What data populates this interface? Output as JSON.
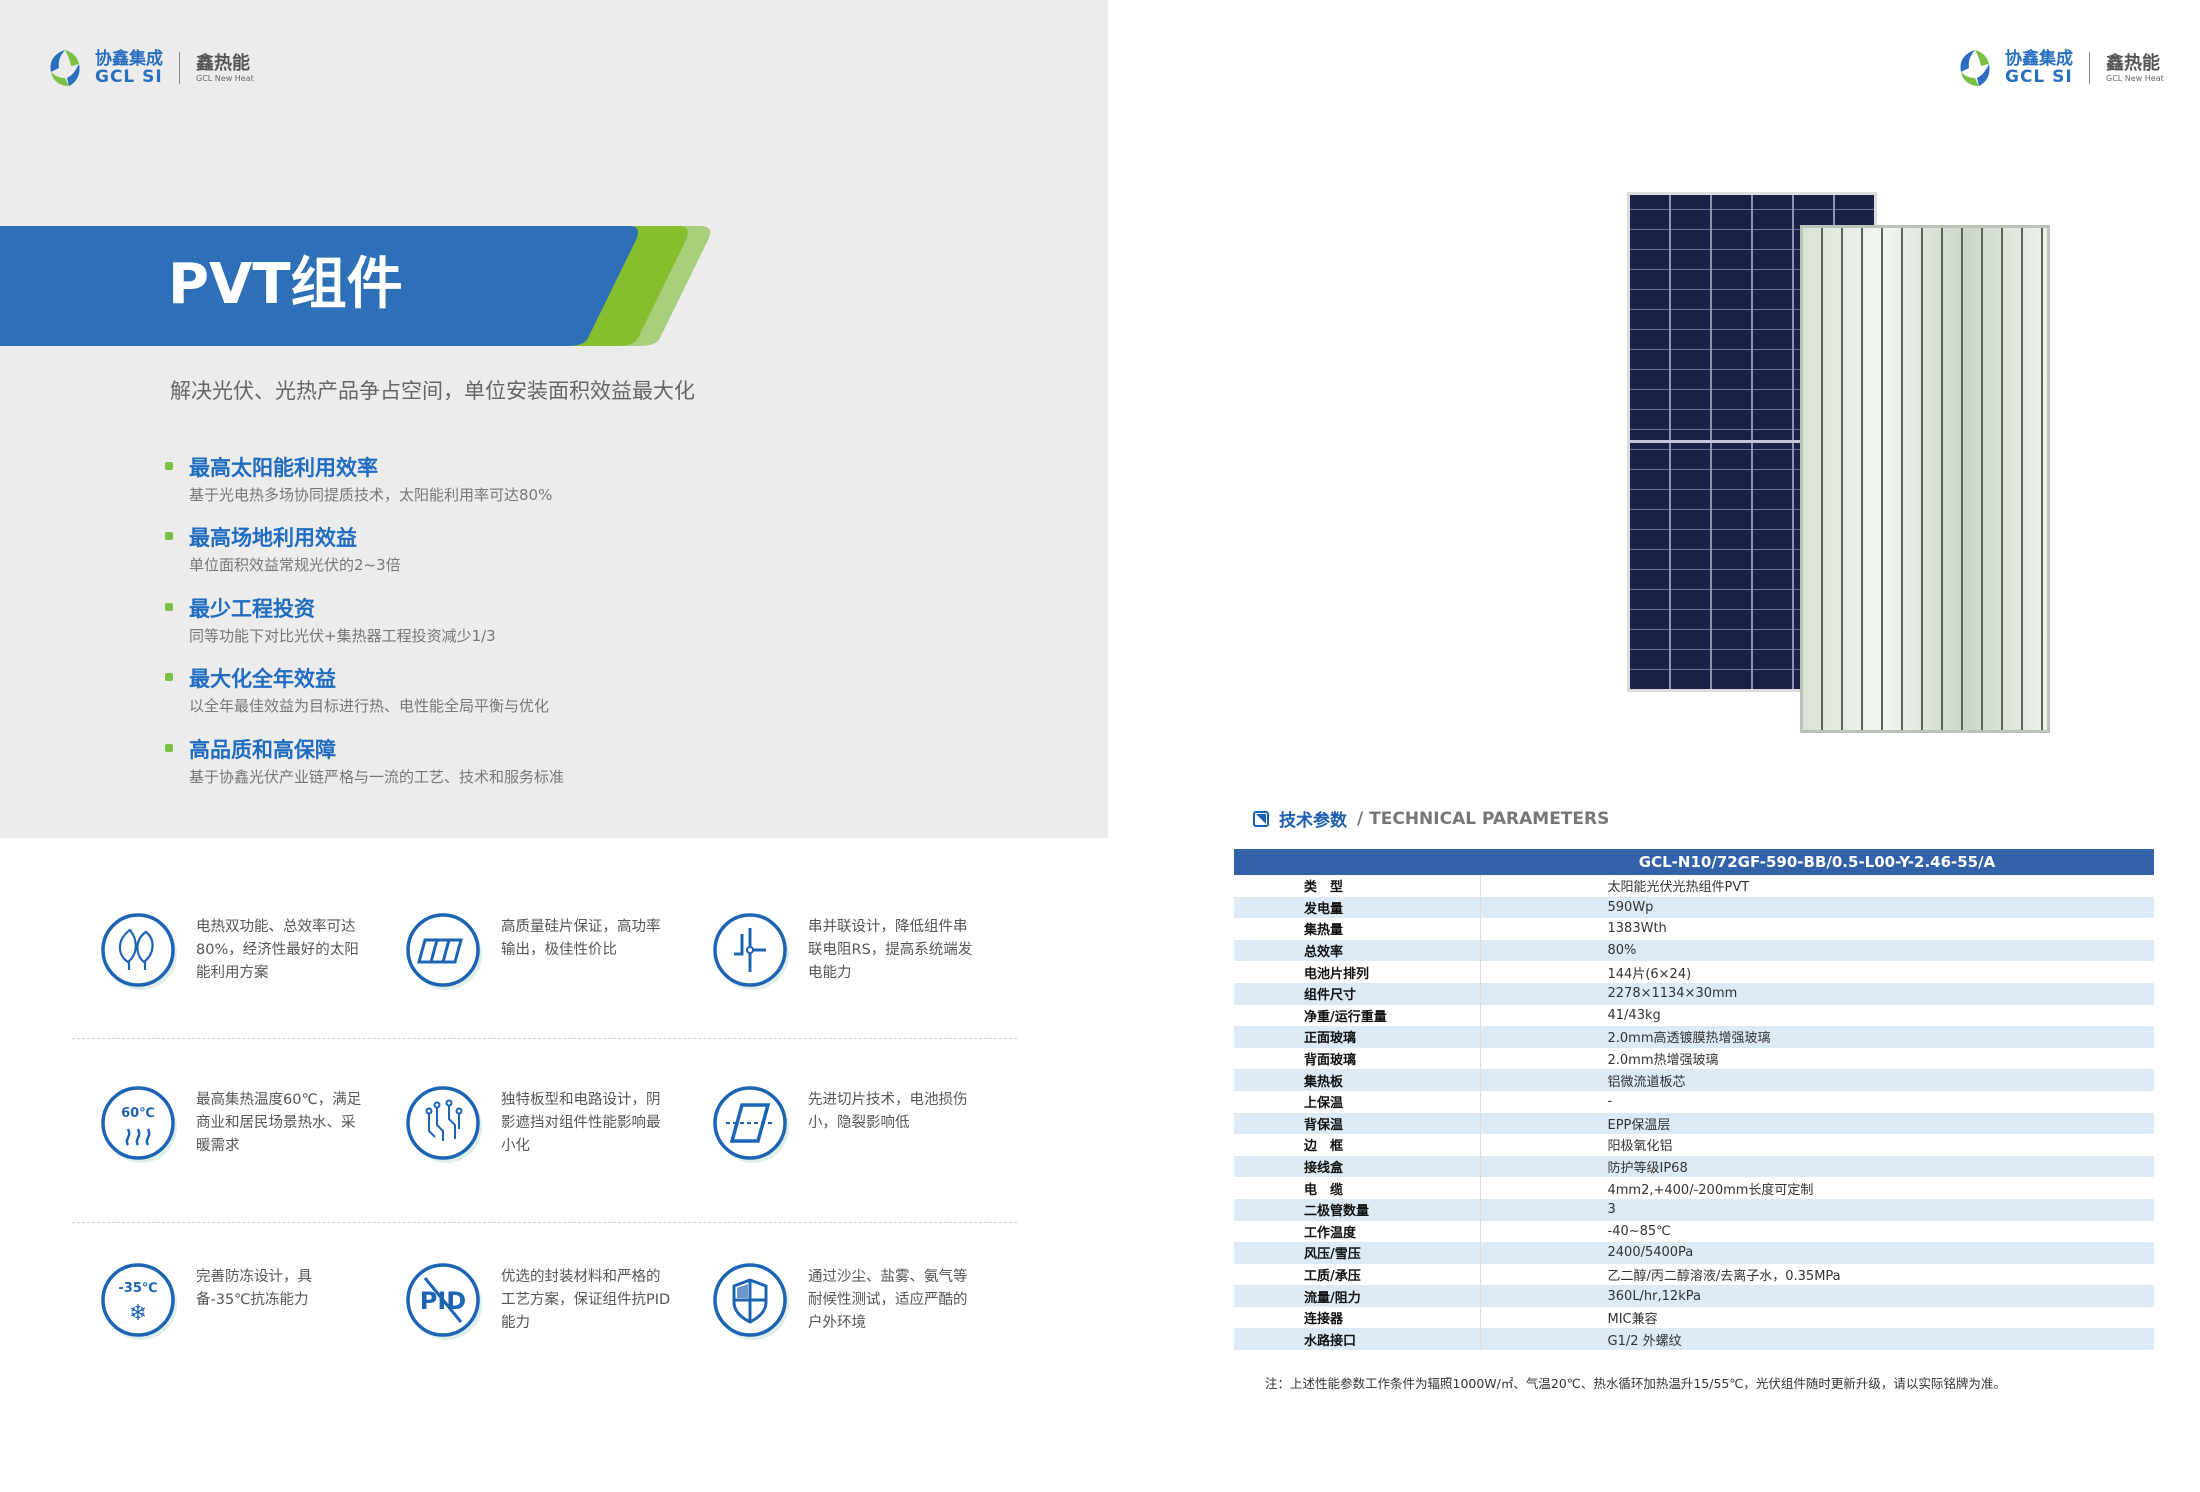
{
  "brand": {
    "cn": "协鑫集成",
    "en": "GCL SI",
    "sub_cn": "鑫热能",
    "sub_en": "GCL New Heat",
    "colors": {
      "blue": "#2a6fbf",
      "green": "#79c043"
    }
  },
  "hero": {
    "title": "PVT组件",
    "subtitle": "解决光伏、光热产品争占空间，单位安装面积效益最大化"
  },
  "features": [
    {
      "title": "最高太阳能利用效率",
      "desc": "基于光电热多场协同提质技术，太阳能利用率可达80%"
    },
    {
      "title": "最高场地利用效益",
      "desc": "单位面积效益常规光伏的2~3倍"
    },
    {
      "title": "最少工程投资",
      "desc": "同等功能下对比光伏+集热器工程投资减少1/3"
    },
    {
      "title": "最大化全年效益",
      "desc": "以全年最佳效益为目标进行热、电性能全局平衡与优化"
    },
    {
      "title": "高品质和高保障",
      "desc": "基于协鑫光伏产业链严格与一流的工艺、技术和服务标准"
    }
  ],
  "icons": [
    {
      "icon": "leaf-icon",
      "text": "电热双功能、总效率可达80%，经济性最好的太阳能利用方案"
    },
    {
      "icon": "solar-cells-icon",
      "text": "高质量硅片保证，高功率输出，极佳性价比"
    },
    {
      "icon": "circuit-junction-icon",
      "text": "串并联设计，降低组件串联电阻RS，提高系统端发电能力"
    },
    {
      "icon": "temperature-60-icon",
      "label": "60℃",
      "text": "最高集热温度60℃，满足商业和居民场景热水、采暖需求"
    },
    {
      "icon": "circuit-board-icon",
      "text": "独特板型和电路设计，阴影遮挡对组件性能影响最小化"
    },
    {
      "icon": "cut-cell-icon",
      "text": "先进切片技术，电池损伤小，隐裂影响低"
    },
    {
      "icon": "snowflake-35-icon",
      "label": "-35℃",
      "text": "完善防冻设计，具备-35℃抗冻能力"
    },
    {
      "icon": "pid-icon",
      "label": "PID",
      "text": "优选的封装材料和严格的工艺方案，保证组件抗PID能力"
    },
    {
      "icon": "shield-icon",
      "text": "通过沙尘、盐雾、氨气等耐候性测试，适应严酷的户外环境"
    }
  ],
  "tech": {
    "heading_cn": "技术参数",
    "heading_en": "/ TECHNICAL PARAMETERS",
    "model": "GCL-N10/72GF-590-BB/0.5-L00-Y-2.46-55/A",
    "rows": [
      {
        "label": "类　型",
        "value": "太阳能光伏光热组件PVT"
      },
      {
        "label": "发电量",
        "value": "590Wp"
      },
      {
        "label": "集热量",
        "value": "1383Wth"
      },
      {
        "label": "总效率",
        "value": "80%"
      },
      {
        "label": "电池片排列",
        "value": "144片(6×24)"
      },
      {
        "label": "组件尺寸",
        "value": "2278×1134×30mm"
      },
      {
        "label": "净重/运行重量",
        "value": "41/43kg"
      },
      {
        "label": "正面玻璃",
        "value": "2.0mm高透镀膜热增强玻璃"
      },
      {
        "label": "背面玻璃",
        "value": "2.0mm热增强玻璃"
      },
      {
        "label": "集热板",
        "value": "铝微流道板芯"
      },
      {
        "label": "上保温",
        "value": "-"
      },
      {
        "label": "背保温",
        "value": "EPP保温层"
      },
      {
        "label": "边　框",
        "value": "阳极氧化铝"
      },
      {
        "label": "接线盒",
        "value": "防护等级IP68"
      },
      {
        "label": "电　缆",
        "value": "4mm2,+400/-200mm长度可定制"
      },
      {
        "label": "二极管数量",
        "value": "3"
      },
      {
        "label": "工作温度",
        "value": "-40~85℃"
      },
      {
        "label": "风压/雪压",
        "value": "2400/5400Pa"
      },
      {
        "label": "工质/承压",
        "value": "乙二醇/丙二醇溶液/去离子水，0.35MPa"
      },
      {
        "label": "流量/阻力",
        "value": "360L/hr,12kPa"
      },
      {
        "label": "连接器",
        "value": "MIC兼容"
      },
      {
        "label": "水路接口",
        "value": "G1/2 外螺纹"
      }
    ],
    "note": "注：上述性能参数工作条件为辐照1000W/㎡、气温20℃、热水循环加热温升15/55℃，光伏组件随时更新升级，请以实际铭牌为准。"
  }
}
